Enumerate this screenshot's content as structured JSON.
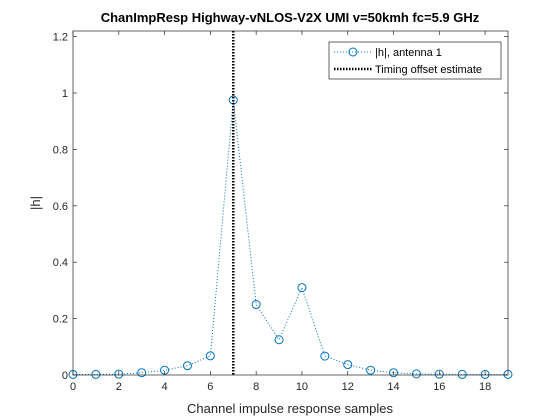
{
  "chart_data": {
    "type": "scatter",
    "title": "ChanImpResp Highway-vNLOS-V2X UMI v=50kmh fc=5.9 GHz",
    "xlabel": "Channel impulse response samples",
    "ylabel": "|h|",
    "xlim": [
      0,
      19
    ],
    "ylim": [
      0,
      1.22
    ],
    "xticks": [
      0,
      2,
      4,
      6,
      8,
      10,
      12,
      14,
      16,
      18
    ],
    "yticks": [
      0,
      0.2,
      0.4,
      0.6,
      0.8,
      1,
      1.2
    ],
    "xtick_labels": [
      "0",
      "2",
      "4",
      "6",
      "8",
      "10",
      "12",
      "14",
      "16",
      "18"
    ],
    "ytick_labels": [
      "0",
      "0.2",
      "0.4",
      "0.6",
      "0.8",
      "1",
      "1.2"
    ],
    "grid": false,
    "legend_position": "top-right",
    "series": [
      {
        "name": "|h|, antenna 1",
        "style": "dotted line with circle markers",
        "color": "#0072BD",
        "x": [
          0,
          1,
          2,
          3,
          4,
          5,
          6,
          7,
          8,
          9,
          10,
          11,
          12,
          13,
          14,
          15,
          16,
          17,
          18,
          19
        ],
        "y": [
          0.002,
          0.002,
          0.003,
          0.008,
          0.017,
          0.033,
          0.068,
          0.975,
          0.25,
          0.125,
          0.31,
          0.067,
          0.037,
          0.017,
          0.008,
          0.004,
          0.003,
          0.002,
          0.002,
          0.002
        ]
      },
      {
        "name": "Timing offset estimate",
        "style": "vertical dotted line",
        "color": "#000000",
        "x_value": 7
      }
    ]
  }
}
